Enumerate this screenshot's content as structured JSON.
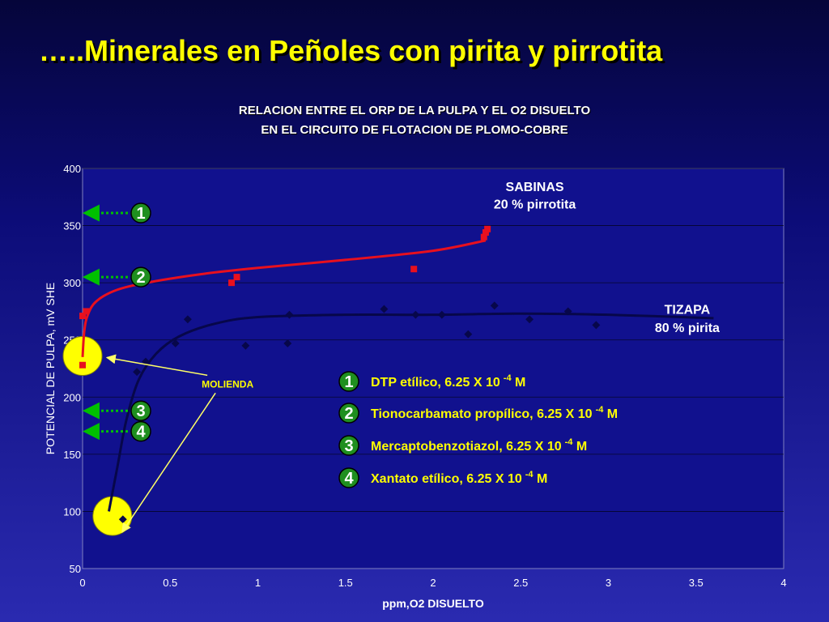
{
  "slide": {
    "title": "…..Minerales en Peñoles con pirita y pirrotita",
    "subtitle_line1": "RELACION ENTRE EL ORP DE LA PULPA Y EL O2 DISUELTO",
    "subtitle_line2": "EN EL CIRCUITO DE FLOTACION DE PLOMO-COBRE"
  },
  "colors": {
    "sabinas": "#e8101e",
    "tizapa": "#07074a",
    "highlight": "#ffff00",
    "arrow_green": "#00c000",
    "badge_fill": "#1f8f1f"
  },
  "chart_data": {
    "type": "scatter",
    "xlabel": "ppm,O2 DISUELTO",
    "ylabel": "POTENCIAL DE PULPA, mV SHE",
    "xlim": [
      0,
      4
    ],
    "ylim": [
      50,
      400
    ],
    "xticks": [
      0,
      0.5,
      1,
      1.5,
      2,
      2.5,
      3,
      3.5,
      4
    ],
    "xtick_labels": [
      "0",
      "0.5",
      "1",
      "1.5",
      "2",
      "2.5",
      "3",
      "3.5",
      "4"
    ],
    "yticks": [
      50,
      100,
      150,
      200,
      250,
      300,
      350,
      400
    ],
    "ytick_labels": [
      "50",
      "100",
      "150",
      "200",
      "250",
      "300",
      "350",
      "400"
    ],
    "grid": true,
    "series": [
      {
        "marker": "square",
        "points": [
          [
            0.0,
            228
          ],
          [
            0.0,
            271
          ],
          [
            0.02,
            275
          ],
          [
            0.85,
            300
          ],
          [
            0.88,
            305
          ],
          [
            1.89,
            312
          ],
          [
            2.29,
            340
          ],
          [
            2.3,
            344
          ],
          [
            2.31,
            347
          ]
        ],
        "trend": [
          [
            0.0,
            235
          ],
          [
            0.01,
            258
          ],
          [
            0.03,
            272
          ],
          [
            0.08,
            284
          ],
          [
            0.2,
            294
          ],
          [
            0.4,
            301
          ],
          [
            0.7,
            308
          ],
          [
            1.0,
            313
          ],
          [
            1.5,
            320
          ],
          [
            2.0,
            328
          ],
          [
            2.3,
            337
          ]
        ]
      },
      {
        "marker": "diamond",
        "points": [
          [
            0.23,
            93
          ],
          [
            0.31,
            222
          ],
          [
            0.36,
            231
          ],
          [
            0.53,
            247
          ],
          [
            0.6,
            268
          ],
          [
            0.93,
            245
          ],
          [
            1.17,
            247
          ],
          [
            1.18,
            272
          ],
          [
            1.72,
            277
          ],
          [
            1.9,
            272
          ],
          [
            2.05,
            272
          ],
          [
            2.2,
            255
          ],
          [
            2.35,
            280
          ],
          [
            2.55,
            268
          ],
          [
            2.77,
            275
          ],
          [
            2.93,
            263
          ]
        ],
        "trend": [
          [
            0.15,
            100
          ],
          [
            0.2,
            140
          ],
          [
            0.25,
            180
          ],
          [
            0.32,
            215
          ],
          [
            0.42,
            238
          ],
          [
            0.55,
            253
          ],
          [
            0.75,
            264
          ],
          [
            1.0,
            270
          ],
          [
            1.5,
            272
          ],
          [
            2.0,
            272
          ],
          [
            2.5,
            273
          ],
          [
            3.0,
            272
          ],
          [
            3.6,
            269
          ]
        ]
      }
    ],
    "annotations": [
      {
        "id": "sabinas_name",
        "text": "SABINAS",
        "x": 2.58,
        "y": 380,
        "size": 16
      },
      {
        "id": "sabinas_pct",
        "text": "20 % pirrotita",
        "x": 2.58,
        "y": 365,
        "size": 16
      },
      {
        "id": "tizapa_name",
        "text": "TIZAPA",
        "x": 3.45,
        "y": 273,
        "size": 16
      },
      {
        "id": "tizapa_pct",
        "text": "80 % pirita",
        "x": 3.45,
        "y": 257,
        "size": 16
      }
    ],
    "highlights": [
      {
        "x": 0.0,
        "y": 236
      },
      {
        "x": 0.17,
        "y": 96
      }
    ],
    "callout": {
      "text": "MOLIENDA",
      "x": 0.735,
      "y": 212
    },
    "level_markers": [
      {
        "number": "1",
        "y": 361
      },
      {
        "number": "2",
        "y": 305
      },
      {
        "number": "3",
        "y": 188
      },
      {
        "number": "4",
        "y": 170
      }
    ],
    "legend": [
      {
        "number": "1",
        "label": "DTP etílico, 6.25 X 10",
        "exponent": "-4",
        "unit": " M"
      },
      {
        "number": "2",
        "label": "Tionocarbamato propílico, 6.25 X 10",
        "exponent": "-4",
        "unit": " M"
      },
      {
        "number": "3",
        "label": "Mercaptobenzotiazol, 6.25 X 10",
        "exponent": "-4",
        "unit": " M"
      },
      {
        "number": "4",
        "label": "Xantato etílico, 6.25 X 10",
        "exponent": "-4",
        "unit": " M"
      }
    ]
  }
}
